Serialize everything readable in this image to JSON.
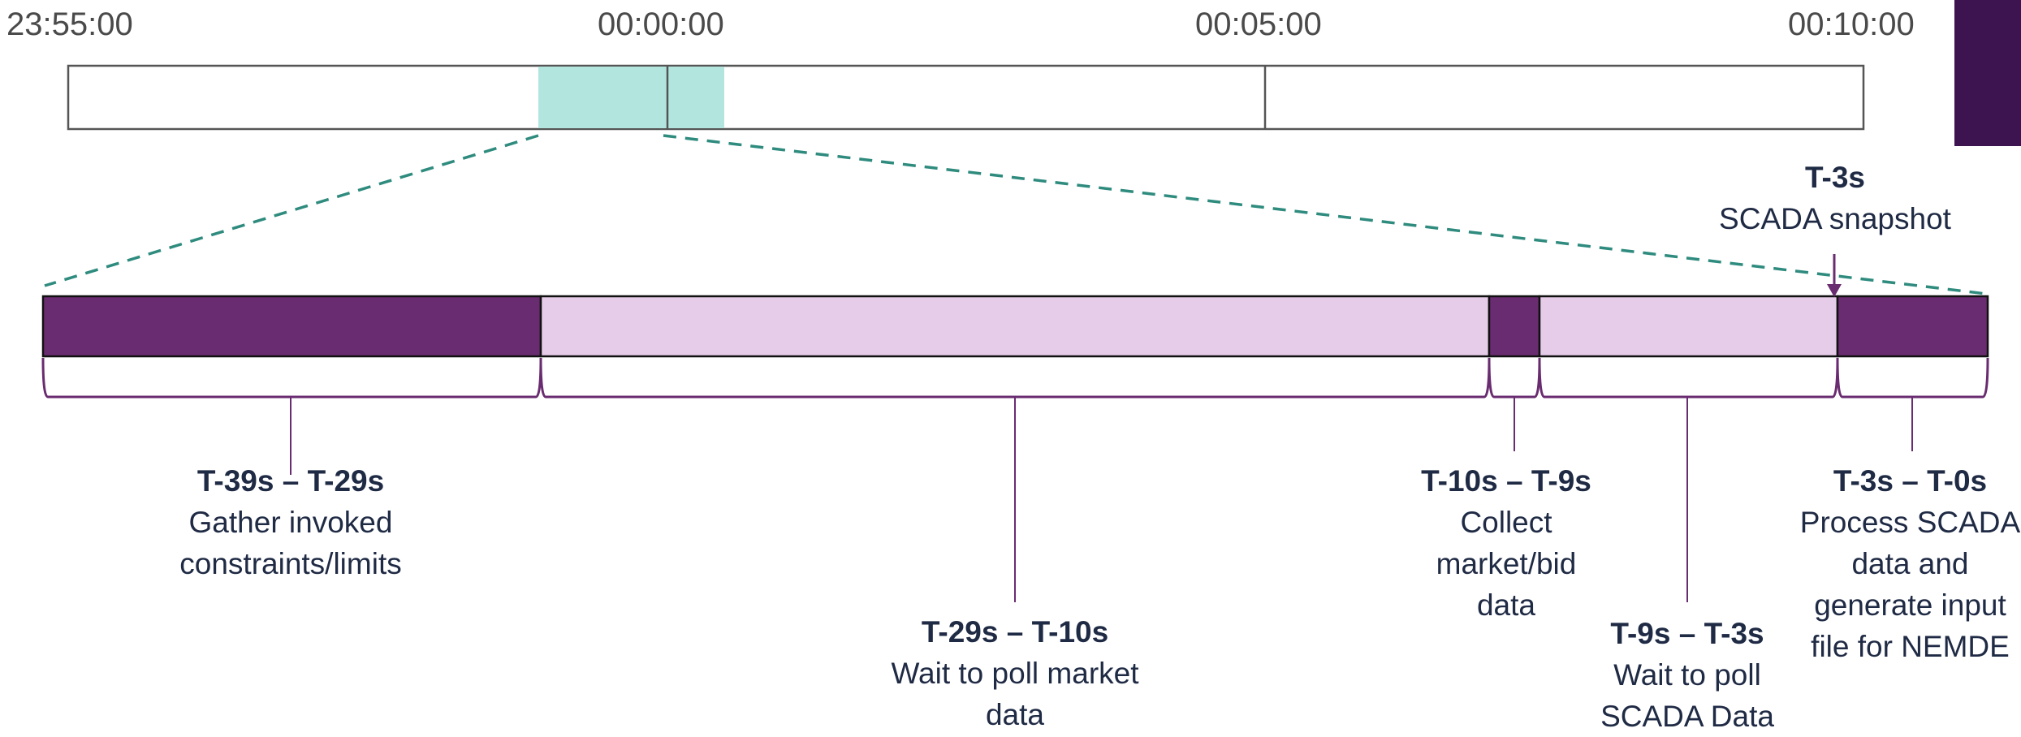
{
  "colors": {
    "dark_purple": "#6a2c70",
    "light_purple": "#e6cce8",
    "teal": "#b3e5df",
    "teal_line": "#2e8b7e",
    "bracket": "#6a2c70",
    "text": "#1f2a44",
    "corner": "#3d1450"
  },
  "timeline": {
    "labels": [
      "23:55:00",
      "00:00:00",
      "00:05:00",
      "00:10:00"
    ]
  },
  "snapshot": {
    "time": "T-3s",
    "label": "SCADA snapshot"
  },
  "phases": [
    {
      "range": "T-39s – T-29s",
      "lines": [
        "Gather invoked",
        "constraints/limits"
      ],
      "fill": "dark"
    },
    {
      "range": "T-29s – T-10s",
      "lines": [
        "Wait to poll market",
        "data"
      ],
      "fill": "light"
    },
    {
      "range": "T-10s – T-9s",
      "lines": [
        "Collect",
        "market/bid",
        "data"
      ],
      "fill": "dark"
    },
    {
      "range": "T-9s – T-3s",
      "lines": [
        "Wait to poll",
        "SCADA Data"
      ],
      "fill": "light"
    },
    {
      "range": "T-3s – T-0s",
      "lines": [
        "Process SCADA",
        "data and",
        "generate input",
        "file for NEMDE"
      ],
      "fill": "dark"
    }
  ]
}
